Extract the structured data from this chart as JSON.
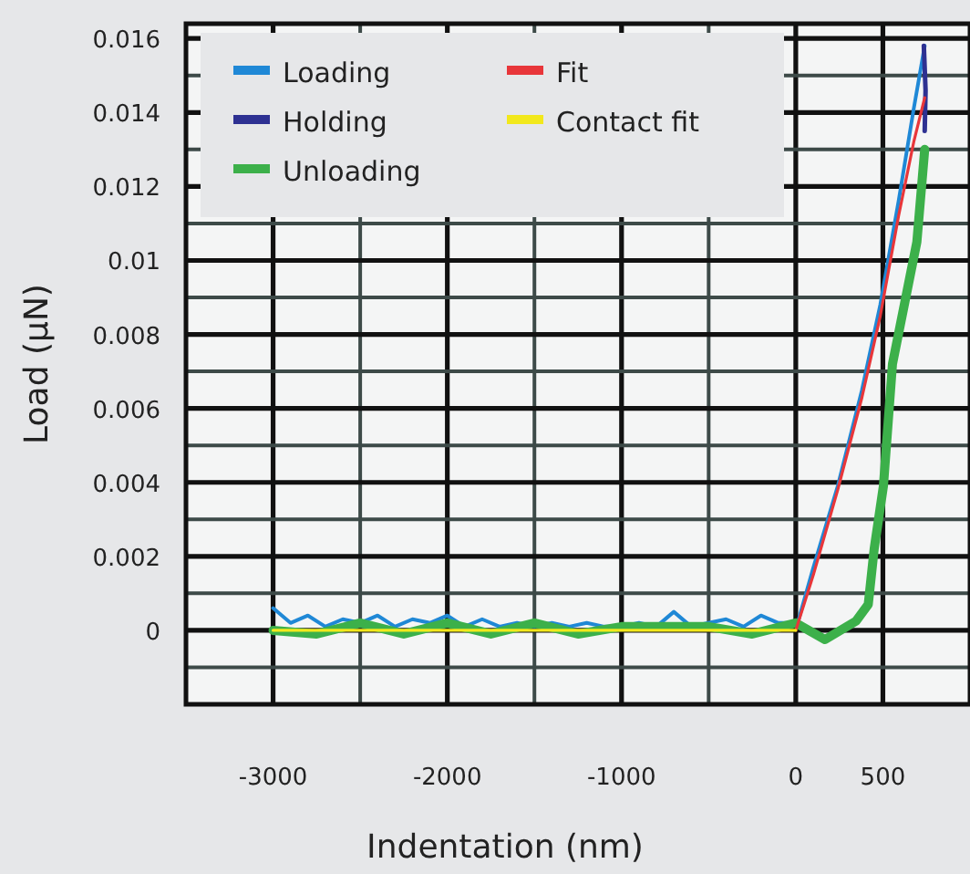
{
  "chart_data": {
    "type": "line",
    "xlabel": "Indentation (nm)",
    "ylabel": "Load (μN)",
    "xlim": [
      -3500,
      1000
    ],
    "ylim": [
      -0.002,
      0.0164
    ],
    "xticks": [
      -3000,
      {
        "value": -2500,
        "label": null
      },
      -2000,
      {
        "value": -1500,
        "label": null
      },
      -1000,
      {
        "value": -500,
        "label": null
      },
      0,
      500
    ],
    "yticks": [
      {
        "value": -0.001,
        "label": null
      },
      0,
      {
        "value": 0.001,
        "label": null
      },
      0.002,
      {
        "value": 0.003,
        "label": null
      },
      0.004,
      {
        "value": 0.005,
        "label": null
      },
      0.006,
      {
        "value": 0.007,
        "label": null
      },
      0.008,
      {
        "value": 0.009,
        "label": null
      },
      0.01,
      {
        "value": 0.011,
        "label": null
      },
      0.012,
      {
        "value": 0.013,
        "label": null
      },
      0.014,
      {
        "value": 0.015,
        "label": null
      },
      0.016
    ],
    "grid": true,
    "legend": "top left",
    "line_style": "solid",
    "series": [
      {
        "name": "Loading",
        "color": "#1f88d6",
        "x": [
          -3000,
          -2900,
          -2800,
          -2700,
          -2600,
          -2500,
          -2400,
          -2300,
          -2200,
          -2100,
          -2000,
          -1900,
          -1800,
          -1700,
          -1600,
          -1500,
          -1400,
          -1300,
          -1200,
          -1100,
          -1000,
          -900,
          -800,
          -700,
          -600,
          -500,
          -400,
          -300,
          -200,
          -100,
          0,
          14,
          101,
          241,
          380,
          485,
          590,
          677,
          740
        ],
        "values": [
          0.0006,
          0.0002,
          0.0004,
          0.0001,
          0.0003,
          0.0002,
          0.0004,
          0.0001,
          0.0003,
          0.0002,
          0.0004,
          0.0001,
          0.0003,
          0.0001,
          0.0002,
          0.0001,
          0.0002,
          0.0001,
          0.0002,
          0.0001,
          0.0001,
          0.0002,
          0.0001,
          0.0005,
          0.0001,
          0.0002,
          0.0003,
          0.0001,
          0.0004,
          0.0002,
          0.0002,
          0.00025,
          0.0017,
          0.0039,
          0.0065,
          0.0088,
          0.0116,
          0.0141,
          0.0158
        ]
      },
      {
        "name": "Holding",
        "color": "#2e3192",
        "x": [
          735,
          745,
          740
        ],
        "values": [
          0.0158,
          0.0146,
          0.0135
        ]
      },
      {
        "name": "Unloading",
        "color": "#3cb04a",
        "x": [
          -3000,
          -2750,
          -2500,
          -2250,
          -2000,
          -1750,
          -1500,
          -1250,
          -1000,
          -750,
          -500,
          -250,
          0,
          168,
          346,
          416,
          450,
          503,
          555,
          695,
          740
        ],
        "values": [
          0,
          -0.0001,
          0.0002,
          -0.0001,
          0.0002,
          -0.0001,
          0.0002,
          -0.0001,
          0.0001,
          0.0001,
          0.0001,
          -0.0001,
          0.0002,
          -0.00025,
          0.00025,
          0.0007,
          0.0022,
          0.0039,
          0.0072,
          0.0105,
          0.013
        ]
      },
      {
        "name": "Fit",
        "color": "#e8363a",
        "x": [
          0,
          101,
          241,
          380,
          485,
          590,
          677,
          740
        ],
        "values": [
          0,
          0.0015,
          0.0038,
          0.0063,
          0.0085,
          0.0112,
          0.0132,
          0.0144
        ]
      },
      {
        "name": "Contact fit",
        "color": "#f2e81c",
        "x": [
          -3000,
          0
        ],
        "values": [
          0,
          0
        ]
      }
    ]
  }
}
